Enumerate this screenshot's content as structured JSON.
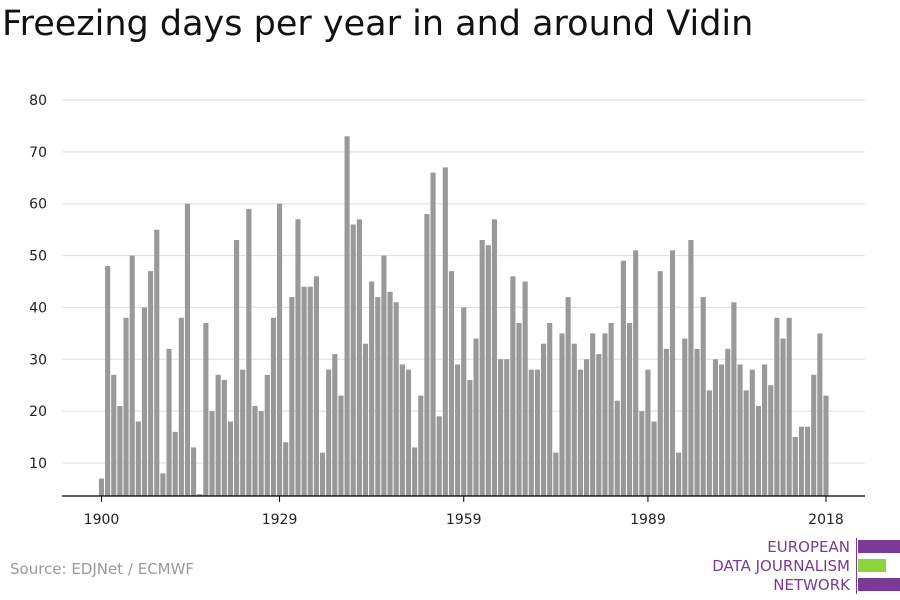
{
  "title": "Freezing days per year in and around Vidin",
  "source": "Source: EDJNet / ECMWF",
  "logo": {
    "line1": "EUROPEAN",
    "line2": "DATA JOURNALISM",
    "line3": "NETWORK",
    "colors": {
      "purple": "#7b3a96",
      "green": "#8cd43c"
    }
  },
  "chart_data": {
    "type": "bar",
    "title": "Freezing days per year in and around Vidin",
    "x_start": 1900,
    "x_end": 2018,
    "xticks": [
      1900,
      1929,
      1959,
      1989,
      2018
    ],
    "yticks": [
      10,
      20,
      30,
      40,
      50,
      60,
      70,
      80
    ],
    "ylim": [
      4,
      80
    ],
    "grid": true,
    "bar_color": "#999999",
    "values": [
      7,
      48,
      27,
      21,
      38,
      50,
      18,
      40,
      47,
      55,
      8,
      32,
      16,
      38,
      60,
      13,
      4,
      37,
      20,
      27,
      26,
      18,
      53,
      28,
      59,
      21,
      20,
      27,
      38,
      60,
      14,
      42,
      57,
      44,
      44,
      46,
      12,
      28,
      31,
      23,
      73,
      56,
      57,
      33,
      45,
      42,
      50,
      43,
      41,
      29,
      28,
      13,
      23,
      58,
      66,
      19,
      67,
      47,
      29,
      40,
      26,
      34,
      53,
      52,
      57,
      30,
      30,
      46,
      37,
      45,
      28,
      28,
      33,
      37,
      12,
      35,
      42,
      33,
      28,
      30,
      35,
      31,
      35,
      37,
      22,
      49,
      37,
      51,
      20,
      28,
      18,
      47,
      32,
      51,
      12,
      34,
      53,
      32,
      42,
      24,
      30,
      29,
      32,
      41,
      29,
      24,
      28,
      21,
      29,
      25,
      38,
      34,
      38,
      15,
      17,
      17,
      27,
      35,
      23
    ]
  }
}
